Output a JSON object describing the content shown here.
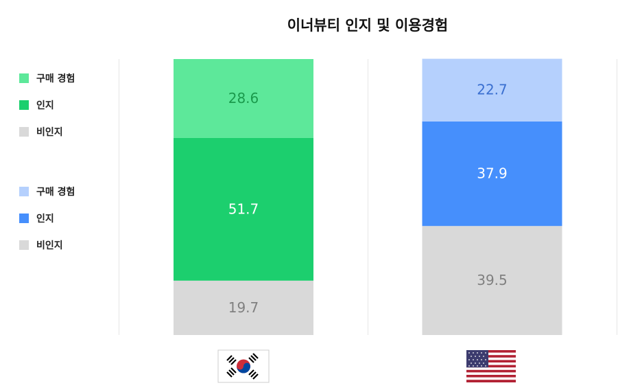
{
  "chart_data": {
    "type": "bar",
    "stacked": true,
    "title": "이너뷰티 인지 및 이용경험",
    "categories": [
      null,
      null
    ],
    "ylim": [
      0,
      100
    ],
    "series": [
      {
        "name": "구매 경험",
        "color": "#5de89a",
        "label_color": "#1a9a4c",
        "values": [
          28.6,
          null
        ]
      },
      {
        "name": "인지",
        "color": "#1ccf6e",
        "label_color": "#ffffff",
        "values": [
          51.7,
          null
        ]
      },
      {
        "name": "비인지",
        "color": "#d9d9d9",
        "label_color": "#808080",
        "values": [
          19.7,
          null
        ]
      },
      {
        "name": "구매 경험",
        "color": "#b5d0fd",
        "label_color": "#3a6fd0",
        "values": [
          null,
          22.7
        ]
      },
      {
        "name": "인지",
        "color": "#468ffc",
        "label_color": "#ffffff",
        "values": [
          null,
          37.9
        ]
      },
      {
        "name": "비인지",
        "color": "#d9d9d9",
        "label_color": "#808080",
        "values": [
          null,
          39.5
        ]
      }
    ]
  }
}
